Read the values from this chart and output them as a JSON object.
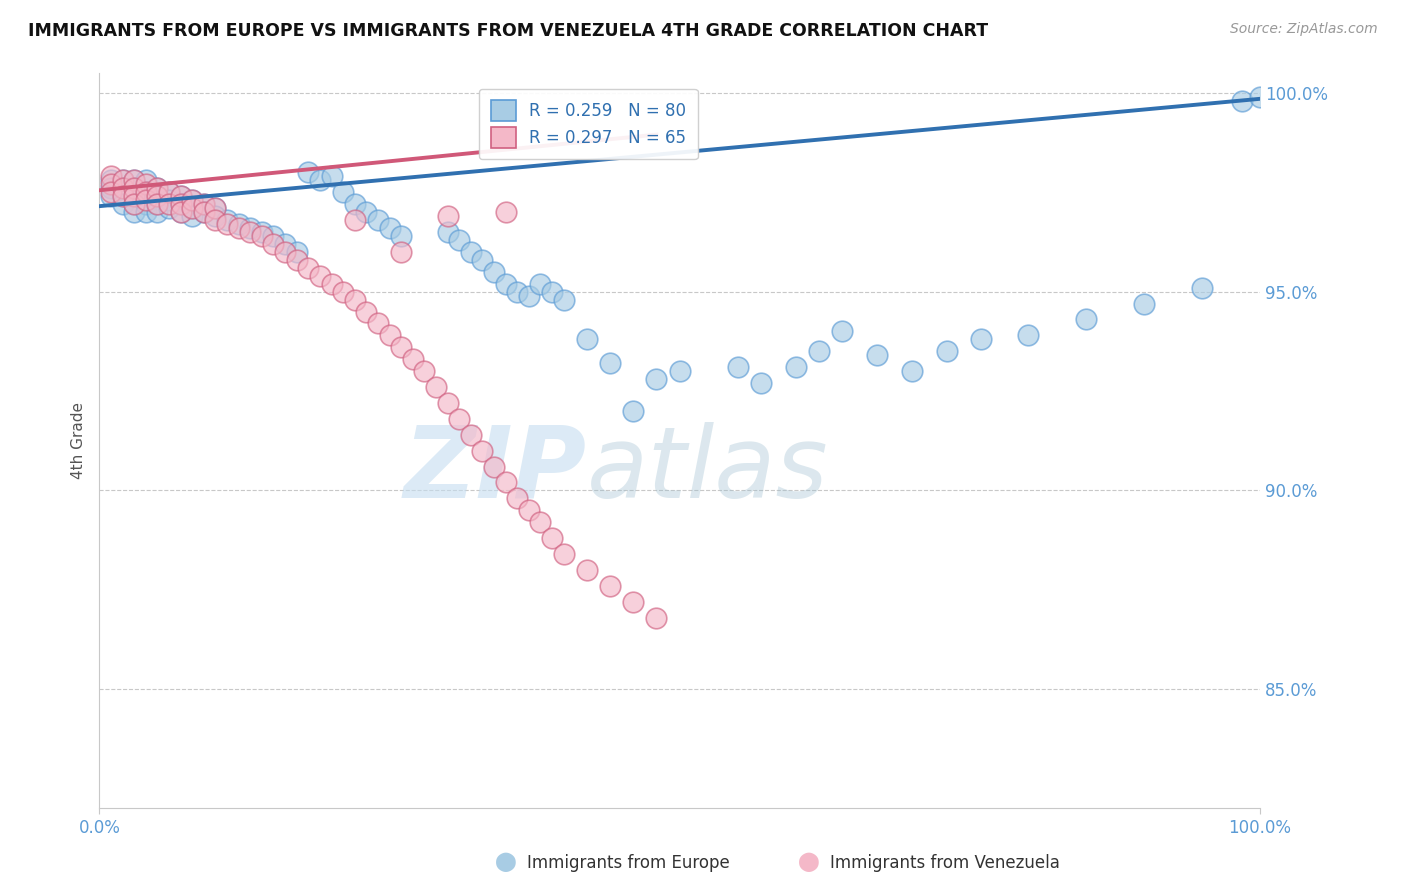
{
  "title": "IMMIGRANTS FROM EUROPE VS IMMIGRANTS FROM VENEZUELA 4TH GRADE CORRELATION CHART",
  "source_text": "Source: ZipAtlas.com",
  "ylabel": "4th Grade",
  "xlim": [
    0.0,
    1.0
  ],
  "ylim": [
    0.82,
    1.005
  ],
  "yticks": [
    0.85,
    0.9,
    0.95,
    1.0
  ],
  "ytick_labels": [
    "85.0%",
    "90.0%",
    "95.0%",
    "100.0%"
  ],
  "xtick_labels": [
    "0.0%",
    "100.0%"
  ],
  "xtick_pos": [
    0.0,
    1.0
  ],
  "blue_color": "#a8cce4",
  "blue_edge": "#5b9bd5",
  "pink_color": "#f4b8c8",
  "pink_edge": "#d06080",
  "line_blue": "#3070b0",
  "line_pink": "#d05878",
  "legend_R_blue": "R = 0.259",
  "legend_N_blue": "N = 80",
  "legend_R_pink": "R = 0.297",
  "legend_N_pink": "N = 65",
  "grid_color": "#c8c8c8",
  "title_color": "#111111",
  "axis_tick_color": "#5b9bd5",
  "blue_line_x0": 0.0,
  "blue_line_x1": 1.0,
  "blue_line_y0": 0.9715,
  "blue_line_y1": 0.9985,
  "pink_line_x0": 0.0,
  "pink_line_x1": 0.48,
  "pink_line_y0": 0.9755,
  "pink_line_y1": 0.9895,
  "blue_scatter_x": [
    0.01,
    0.01,
    0.01,
    0.02,
    0.02,
    0.02,
    0.02,
    0.03,
    0.03,
    0.03,
    0.03,
    0.03,
    0.04,
    0.04,
    0.04,
    0.04,
    0.05,
    0.05,
    0.05,
    0.05,
    0.06,
    0.06,
    0.06,
    0.07,
    0.07,
    0.07,
    0.08,
    0.08,
    0.08,
    0.09,
    0.09,
    0.1,
    0.1,
    0.11,
    0.12,
    0.13,
    0.14,
    0.15,
    0.16,
    0.17,
    0.18,
    0.19,
    0.2,
    0.21,
    0.22,
    0.23,
    0.24,
    0.25,
    0.26,
    0.3,
    0.31,
    0.32,
    0.33,
    0.34,
    0.35,
    0.36,
    0.37,
    0.38,
    0.39,
    0.4,
    0.42,
    0.44,
    0.46,
    0.48,
    0.5,
    0.55,
    0.57,
    0.6,
    0.62,
    0.64,
    0.67,
    0.7,
    0.73,
    0.76,
    0.8,
    0.85,
    0.9,
    0.95,
    0.985,
    1.0
  ],
  "blue_scatter_y": [
    0.978,
    0.976,
    0.974,
    0.978,
    0.976,
    0.974,
    0.972,
    0.978,
    0.976,
    0.974,
    0.972,
    0.97,
    0.978,
    0.975,
    0.972,
    0.97,
    0.976,
    0.974,
    0.972,
    0.97,
    0.975,
    0.973,
    0.971,
    0.974,
    0.972,
    0.97,
    0.973,
    0.971,
    0.969,
    0.972,
    0.97,
    0.971,
    0.969,
    0.968,
    0.967,
    0.966,
    0.965,
    0.964,
    0.962,
    0.96,
    0.98,
    0.978,
    0.979,
    0.975,
    0.972,
    0.97,
    0.968,
    0.966,
    0.964,
    0.965,
    0.963,
    0.96,
    0.958,
    0.955,
    0.952,
    0.95,
    0.949,
    0.952,
    0.95,
    0.948,
    0.938,
    0.932,
    0.92,
    0.928,
    0.93,
    0.931,
    0.927,
    0.931,
    0.935,
    0.94,
    0.934,
    0.93,
    0.935,
    0.938,
    0.939,
    0.943,
    0.947,
    0.951,
    0.998,
    0.999
  ],
  "pink_scatter_x": [
    0.01,
    0.01,
    0.01,
    0.02,
    0.02,
    0.02,
    0.03,
    0.03,
    0.03,
    0.03,
    0.04,
    0.04,
    0.04,
    0.05,
    0.05,
    0.05,
    0.06,
    0.06,
    0.07,
    0.07,
    0.07,
    0.08,
    0.08,
    0.09,
    0.09,
    0.1,
    0.1,
    0.11,
    0.12,
    0.13,
    0.14,
    0.15,
    0.16,
    0.17,
    0.18,
    0.19,
    0.2,
    0.21,
    0.22,
    0.23,
    0.24,
    0.25,
    0.26,
    0.27,
    0.28,
    0.29,
    0.3,
    0.31,
    0.32,
    0.33,
    0.34,
    0.35,
    0.36,
    0.37,
    0.38,
    0.39,
    0.4,
    0.42,
    0.44,
    0.46,
    0.48,
    0.22,
    0.26,
    0.3,
    0.35
  ],
  "pink_scatter_y": [
    0.979,
    0.977,
    0.975,
    0.978,
    0.976,
    0.974,
    0.978,
    0.976,
    0.974,
    0.972,
    0.977,
    0.975,
    0.973,
    0.976,
    0.974,
    0.972,
    0.975,
    0.972,
    0.974,
    0.972,
    0.97,
    0.973,
    0.971,
    0.972,
    0.97,
    0.971,
    0.968,
    0.967,
    0.966,
    0.965,
    0.964,
    0.962,
    0.96,
    0.958,
    0.956,
    0.954,
    0.952,
    0.95,
    0.948,
    0.945,
    0.942,
    0.939,
    0.936,
    0.933,
    0.93,
    0.926,
    0.922,
    0.918,
    0.914,
    0.91,
    0.906,
    0.902,
    0.898,
    0.895,
    0.892,
    0.888,
    0.884,
    0.88,
    0.876,
    0.872,
    0.868,
    0.968,
    0.96,
    0.969,
    0.97
  ]
}
